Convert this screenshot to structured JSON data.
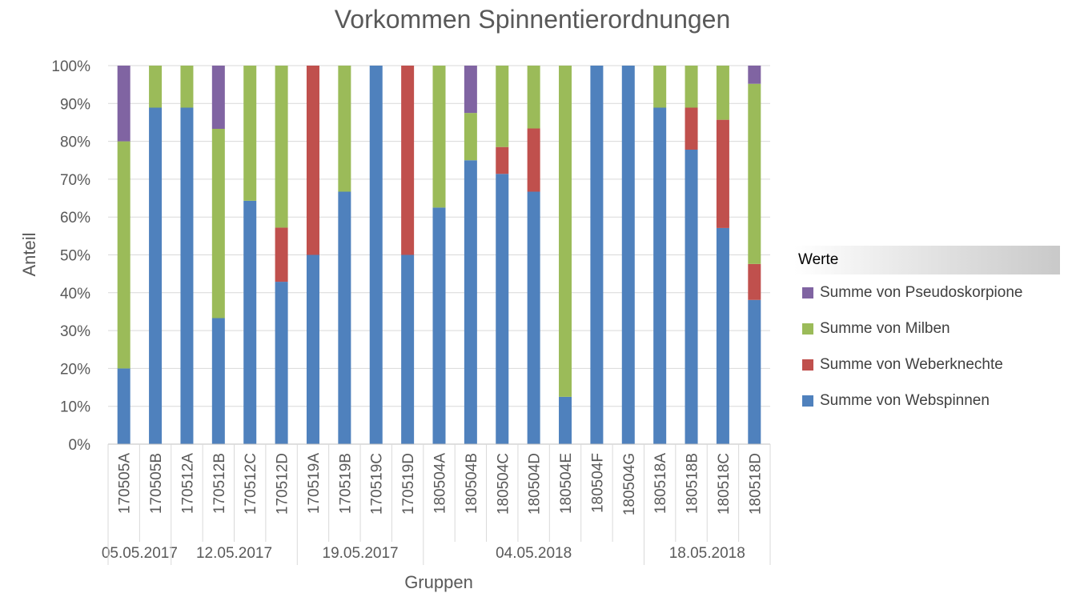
{
  "chart_data": {
    "type": "bar",
    "stacked": true,
    "normalized": true,
    "title": "Vorkommen Spinnentierordnungen",
    "xlabel": "Gruppen",
    "ylabel": "Anteil",
    "ylim": [
      0,
      1
    ],
    "yticks": [
      "0%",
      "10%",
      "20%",
      "30%",
      "40%",
      "50%",
      "60%",
      "70%",
      "80%",
      "90%",
      "100%"
    ],
    "grid": true,
    "legend": {
      "title": "Werte",
      "placement": "right",
      "entries": [
        "Summe von Pseudoskorpione",
        "Summe von Milben",
        "Summe von Weberknechte",
        "Summe von Webspinnen"
      ]
    },
    "categories": [
      "170505A",
      "170505B",
      "170512A",
      "170512B",
      "170512C",
      "170512D",
      "170519A",
      "170519B",
      "170519C",
      "170519D",
      "180504A",
      "180504B",
      "180504C",
      "180504D",
      "180504E",
      "180504F",
      "180504G",
      "180518A",
      "180518B",
      "180518C",
      "180518D"
    ],
    "groups": [
      {
        "label": "05.05.2017",
        "count": 2
      },
      {
        "label": "12.05.2017",
        "count": 4
      },
      {
        "label": "19.05.2017",
        "count": 4
      },
      {
        "label": "04.05.2018",
        "count": 7
      },
      {
        "label": "18.05.2018",
        "count": 4
      }
    ],
    "series": [
      {
        "name": "Summe von Webspinnen",
        "color": "#4f81bd",
        "values": [
          0.2,
          0.889,
          0.889,
          0.333,
          0.643,
          0.429,
          0.5,
          0.667,
          1.0,
          0.5,
          0.625,
          0.75,
          0.714,
          0.667,
          0.125,
          1.0,
          1.0,
          0.889,
          0.778,
          0.571,
          0.381
        ]
      },
      {
        "name": "Summe von Weberknechte",
        "color": "#c0504d",
        "values": [
          0,
          0,
          0,
          0,
          0,
          0.143,
          0.5,
          0,
          0,
          0.5,
          0,
          0,
          0.071,
          0.167,
          0,
          0,
          0,
          0,
          0.111,
          0.286,
          0.095
        ]
      },
      {
        "name": "Summe von Milben",
        "color": "#9bbb59",
        "values": [
          0.6,
          0.111,
          0.111,
          0.5,
          0.357,
          0.428,
          0,
          0.333,
          0,
          0,
          0.375,
          0.125,
          0.215,
          0.166,
          0.875,
          0,
          0,
          0.111,
          0.111,
          0.143,
          0.476
        ]
      },
      {
        "name": "Summe von Pseudoskorpione",
        "color": "#8064a2",
        "values": [
          0.2,
          0,
          0,
          0.167,
          0,
          0,
          0,
          0,
          0,
          0,
          0,
          0.125,
          0,
          0,
          0,
          0,
          0,
          0,
          0,
          0,
          0.048
        ]
      }
    ]
  }
}
